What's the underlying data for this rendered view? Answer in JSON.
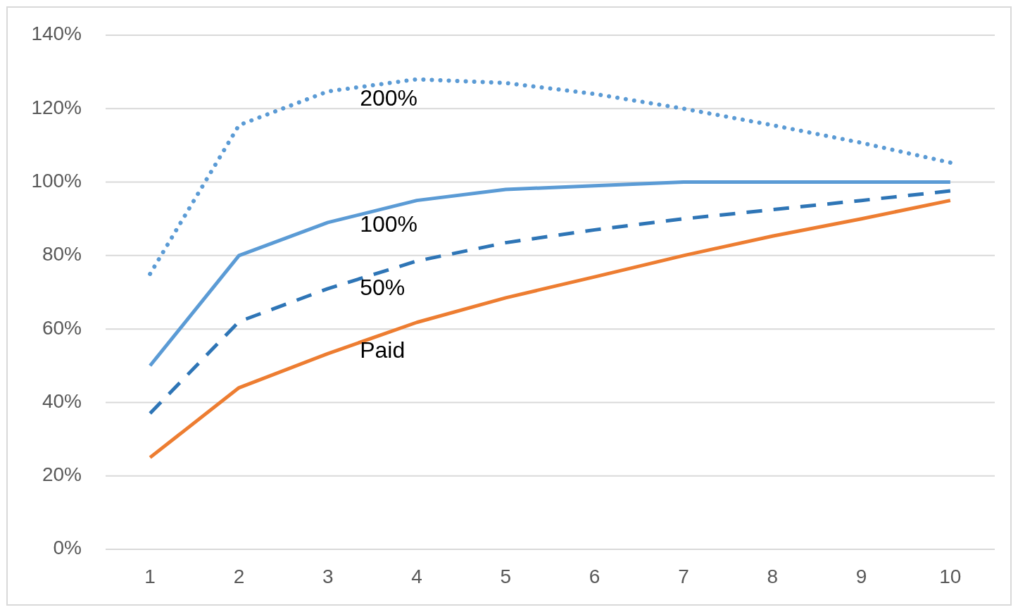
{
  "chart_data": {
    "type": "line",
    "categories": [
      "1",
      "2",
      "3",
      "4",
      "5",
      "6",
      "7",
      "8",
      "9",
      "10"
    ],
    "series": [
      {
        "name": "200%",
        "color": "#5b9bd5",
        "line_style": "dotted",
        "values": [
          75,
          115.5,
          124.7,
          128,
          127,
          124,
          120,
          115.5,
          110.7,
          105.3
        ]
      },
      {
        "name": "100%",
        "color": "#5b9bd5",
        "line_style": "solid",
        "values": [
          50,
          80,
          89,
          95,
          98,
          99,
          100,
          100,
          100,
          100
        ]
      },
      {
        "name": "50%",
        "color": "#2e75b6",
        "line_style": "dashed",
        "values": [
          37,
          62,
          71,
          78.5,
          83.5,
          87,
          90,
          92.5,
          95,
          97.6
        ]
      },
      {
        "name": "Paid",
        "color": "#ed7d31",
        "line_style": "solid",
        "values": [
          25,
          44,
          53.3,
          61.8,
          68.5,
          74.2,
          80,
          85.3,
          90,
          95
        ]
      }
    ],
    "ylim": [
      0,
      140
    ],
    "yticks": [
      {
        "value": 0,
        "label": "0%"
      },
      {
        "value": 20,
        "label": "20%"
      },
      {
        "value": 40,
        "label": "40%"
      },
      {
        "value": 60,
        "label": "60%"
      },
      {
        "value": 80,
        "label": "80%"
      },
      {
        "value": 100,
        "label": "100%"
      },
      {
        "value": 120,
        "label": "120%"
      },
      {
        "value": 140,
        "label": "140%"
      }
    ],
    "grid": "y",
    "marker": "none"
  }
}
